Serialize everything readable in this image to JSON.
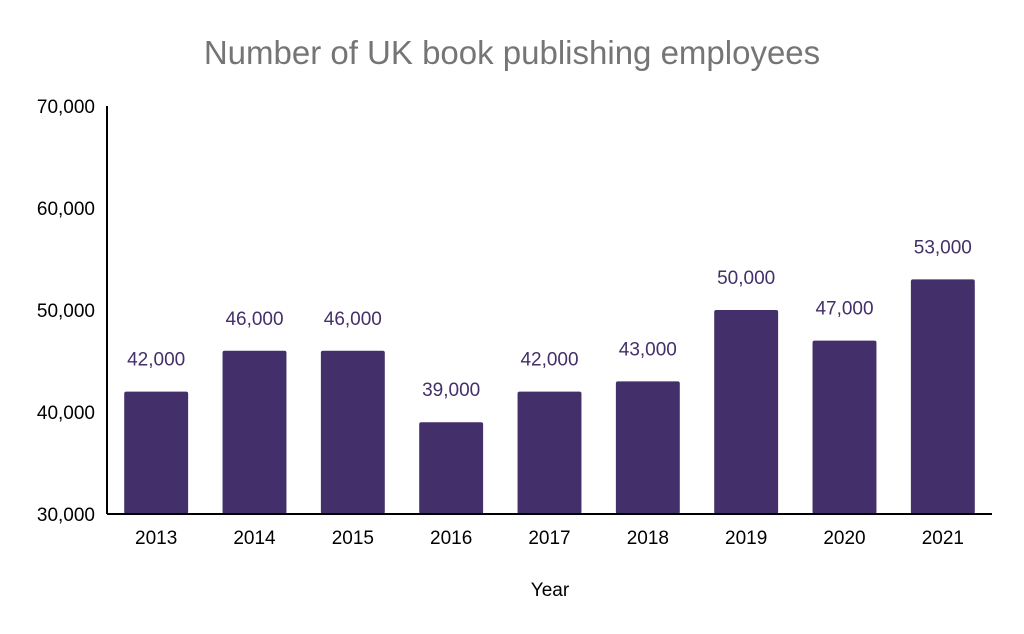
{
  "chart_data": {
    "type": "bar",
    "title": "Number of UK book publishing employees",
    "xlabel": "Year",
    "ylabel": "",
    "categories": [
      "2013",
      "2014",
      "2015",
      "2016",
      "2017",
      "2018",
      "2019",
      "2020",
      "2021"
    ],
    "values": [
      42000,
      46000,
      46000,
      39000,
      42000,
      43000,
      50000,
      47000,
      53000
    ],
    "data_labels": [
      "42,000",
      "46,000",
      "46,000",
      "39,000",
      "42,000",
      "43,000",
      "50,000",
      "47,000",
      "53,000"
    ],
    "ylim": [
      30000,
      70000
    ],
    "yticks": [
      30000,
      40000,
      50000,
      60000,
      70000
    ],
    "ytick_labels": [
      "30,000",
      "40,000",
      "50,000",
      "60,000",
      "70,000"
    ],
    "grid": false,
    "legend": "none",
    "colors": {
      "bar": "#432f69",
      "data_label": "#432f69",
      "title": "#757575",
      "axis": "#000000"
    }
  }
}
